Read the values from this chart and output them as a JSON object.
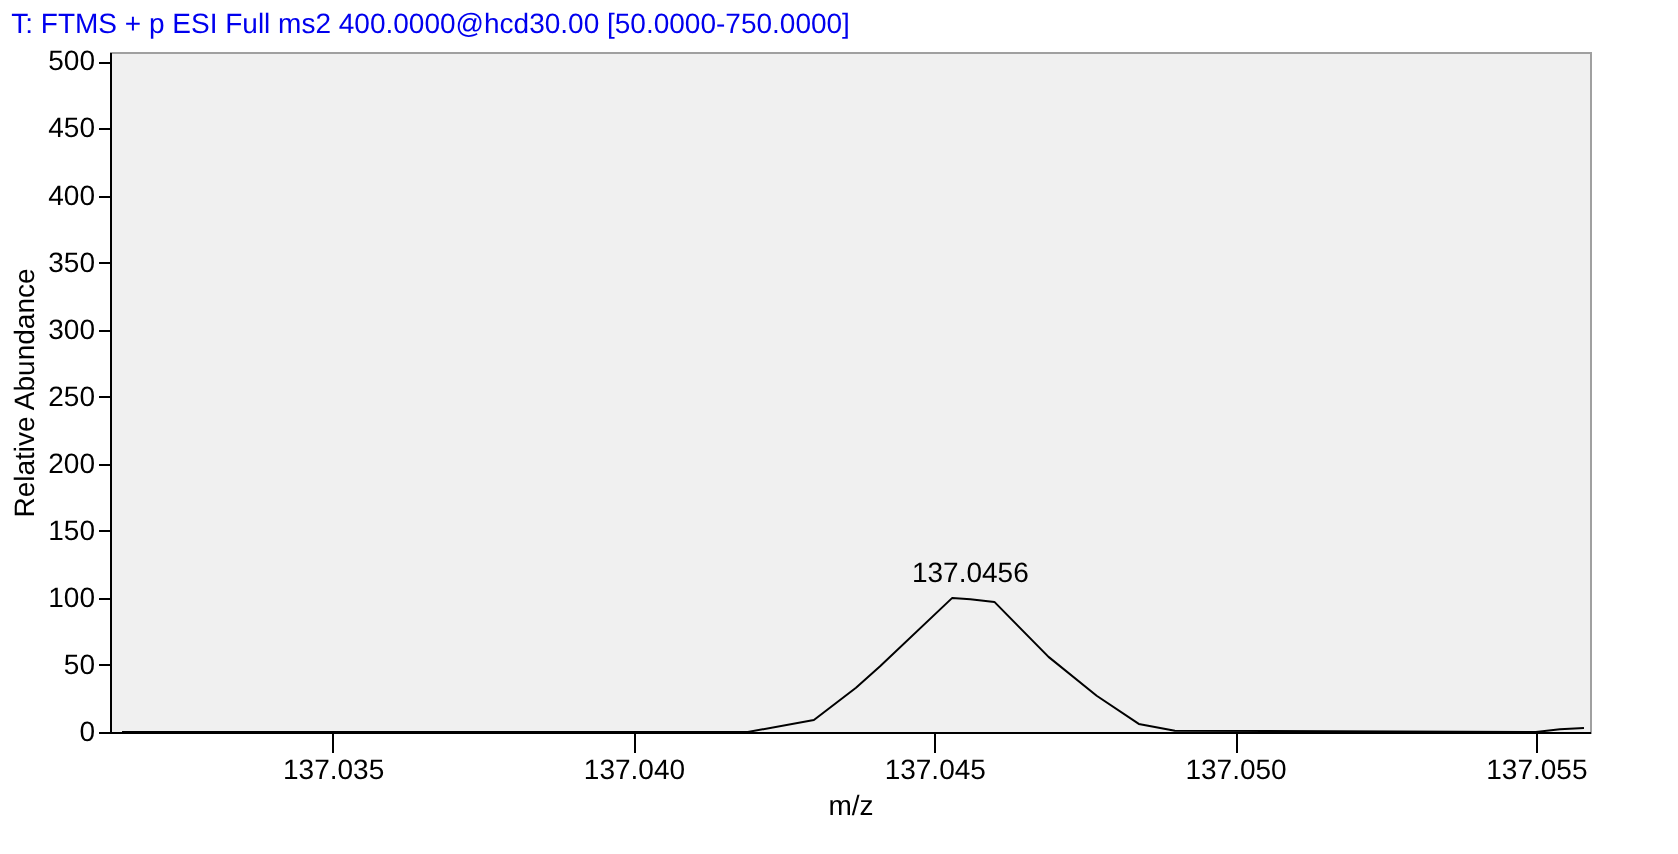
{
  "chart_data": {
    "type": "line",
    "title": "T: FTMS + p ESI Full ms2 400.0000@hcd30.00 [50.0000-750.0000]",
    "xlabel": "m/z",
    "ylabel": "Relative Abundance",
    "series": [
      {
        "color": "#000000",
        "x": [
          137.0315,
          137.0419,
          137.043,
          137.0437,
          137.0441,
          137.0453,
          137.0456,
          137.046,
          137.0469,
          137.0477,
          137.0484,
          137.049,
          137.055,
          137.0554,
          137.0558
        ],
        "values": [
          0,
          0,
          9,
          33,
          49,
          100,
          99,
          97,
          56,
          27,
          6,
          1,
          0,
          2,
          3
        ]
      }
    ],
    "annotations": [
      {
        "text": "137.0456",
        "x": 137.0456,
        "y": 100
      }
    ],
    "xlim": [
      137.0313,
      137.0559
    ],
    "xticks": [
      {
        "value": 137.035,
        "label": "137.035"
      },
      {
        "value": 137.04,
        "label": "137.040"
      },
      {
        "value": 137.045,
        "label": "137.045"
      },
      {
        "value": 137.05,
        "label": "137.050"
      },
      {
        "value": 137.055,
        "label": "137.055"
      }
    ],
    "ylim": [
      0,
      507
    ],
    "yticks": [
      0,
      50,
      100,
      150,
      200,
      250,
      300,
      350,
      400,
      450,
      500
    ],
    "grid": false,
    "marker": "none",
    "line_style": "solid"
  }
}
